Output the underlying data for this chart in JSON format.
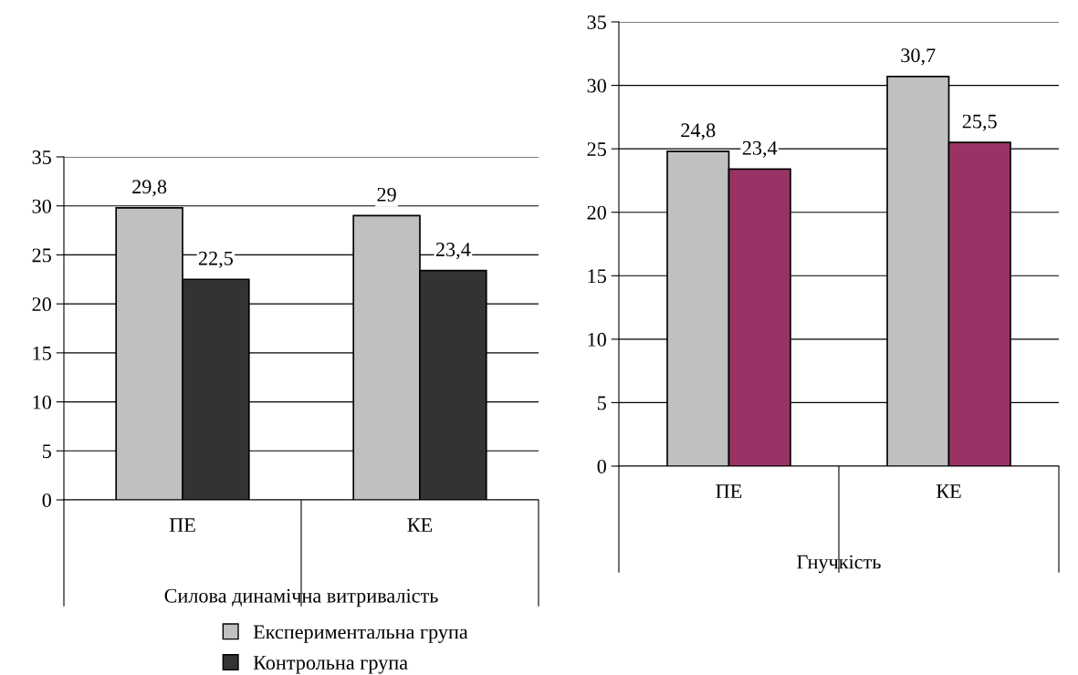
{
  "chart_data": [
    {
      "type": "bar",
      "xlabel": "Силова динамічна витривалість",
      "categories": [
        "ПЕ",
        "КЕ"
      ],
      "series": [
        {
          "name": "Експериментальна група",
          "color": "#c0c0c0",
          "values": [
            29.8,
            29
          ],
          "value_labels": [
            "29,8",
            "29"
          ]
        },
        {
          "name": "Контрольна група",
          "color": "#333333",
          "values": [
            22.5,
            23.4
          ],
          "value_labels": [
            "22,5",
            "23,4"
          ]
        }
      ],
      "ylim": [
        0,
        35
      ],
      "yticks": [
        0,
        5,
        10,
        15,
        20,
        25,
        30,
        35
      ],
      "grid": "y",
      "legend": "bottom"
    },
    {
      "type": "bar",
      "xlabel": "Гнучкість",
      "categories": [
        "ПЕ",
        "КЕ"
      ],
      "series": [
        {
          "color": "#c0c0c0",
          "values": [
            24.8,
            30.7
          ],
          "value_labels": [
            "24,8",
            "30,7"
          ]
        },
        {
          "color": "#993366",
          "values": [
            23.4,
            25.5
          ],
          "value_labels": [
            "23,4",
            "25,5"
          ]
        }
      ],
      "ylim": [
        0,
        35
      ],
      "yticks": [
        0,
        5,
        10,
        15,
        20,
        25,
        30,
        35
      ],
      "grid": "y"
    }
  ]
}
